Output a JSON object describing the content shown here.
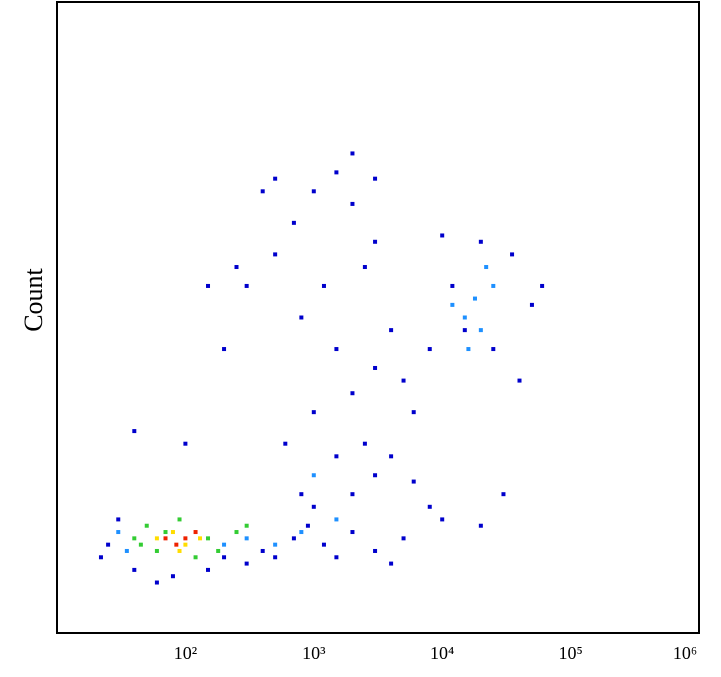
{
  "chart_data": {
    "type": "scatter",
    "y_label": "Count",
    "xscale": "log",
    "xlim": [
      10,
      1000000
    ],
    "ylim": [
      0,
      100
    ],
    "xticks": [
      {
        "value": 100,
        "label": "10²"
      },
      {
        "value": 1000,
        "label": "10³"
      },
      {
        "value": 10000,
        "label": "10⁴"
      },
      {
        "value": 100000,
        "label": "10⁵"
      },
      {
        "value": 1000000,
        "label": "10⁶"
      }
    ],
    "grid": false,
    "series": [
      {
        "color": "#0000cc",
        "x": [
          25,
          30,
          22,
          40,
          60,
          80,
          150,
          200,
          300,
          400,
          500,
          700,
          900,
          1200,
          1500,
          2000,
          3000,
          4000,
          5000,
          1000,
          800,
          2000,
          3000,
          1500,
          2500,
          4000,
          6000,
          8000,
          10000,
          20000,
          30000,
          600,
          1000,
          2000,
          3000,
          5000,
          1500,
          800,
          1200,
          2500,
          700,
          1000,
          500,
          300,
          2000,
          3000,
          4000,
          8000,
          6000,
          12000,
          15000,
          25000,
          40000,
          50000,
          60000,
          35000,
          20000,
          10000,
          200,
          100,
          40,
          150,
          250,
          500,
          1500,
          3000,
          2000,
          400
        ],
        "y": [
          14,
          18,
          12,
          10,
          8,
          9,
          10,
          12,
          11,
          13,
          12,
          15,
          17,
          14,
          12,
          16,
          13,
          11,
          15,
          20,
          22,
          22,
          25,
          28,
          30,
          28,
          24,
          20,
          18,
          17,
          22,
          30,
          35,
          38,
          42,
          40,
          45,
          50,
          55,
          58,
          65,
          70,
          60,
          55,
          68,
          62,
          48,
          45,
          35,
          55,
          48,
          45,
          40,
          52,
          55,
          60,
          62,
          63,
          45,
          30,
          32,
          55,
          58,
          72,
          73,
          72,
          76,
          70
        ]
      },
      {
        "color": "#1e90ff",
        "x": [
          15000,
          18000,
          20000,
          12000,
          25000,
          16000,
          22000,
          30,
          35,
          200,
          300,
          500,
          800,
          1500,
          1000
        ],
        "y": [
          50,
          53,
          48,
          52,
          55,
          45,
          58,
          16,
          13,
          14,
          15,
          14,
          16,
          18,
          25
        ]
      },
      {
        "color": "#33cc33",
        "x": [
          40,
          50,
          60,
          70,
          150,
          180,
          250,
          45,
          90,
          120,
          300
        ],
        "y": [
          15,
          17,
          13,
          16,
          15,
          13,
          16,
          14,
          18,
          12,
          17
        ]
      },
      {
        "color": "#ffdd00",
        "x": [
          60,
          80,
          100,
          130,
          90
        ],
        "y": [
          15,
          16,
          14,
          15,
          13
        ]
      },
      {
        "color": "#ee2200",
        "x": [
          70,
          100,
          120,
          85
        ],
        "y": [
          15,
          15,
          16,
          14
        ]
      }
    ]
  }
}
